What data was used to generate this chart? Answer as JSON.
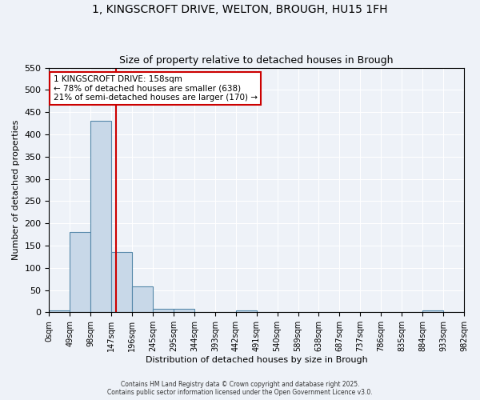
{
  "title_line1": "1, KINGSCROFT DRIVE, WELTON, BROUGH, HU15 1FH",
  "title_line2": "Size of property relative to detached houses in Brough",
  "xlabel": "Distribution of detached houses by size in Brough",
  "ylabel": "Number of detached properties",
  "bar_color": "#c8d8e8",
  "bar_edge_color": "#5588aa",
  "background_color": "#eef2f8",
  "grid_color": "#ffffff",
  "bin_edges": [
    0,
    49,
    98,
    147,
    196,
    245,
    294,
    343,
    392,
    441,
    490,
    539,
    588,
    637,
    686,
    735,
    784,
    833,
    882,
    931
  ],
  "bar_heights": [
    5,
    180,
    430,
    135,
    58,
    8,
    8,
    0,
    0,
    5,
    0,
    0,
    0,
    0,
    0,
    0,
    0,
    0,
    5,
    0
  ],
  "property_size": 158,
  "red_line_color": "#cc0000",
  "annotation_text": "1 KINGSCROFT DRIVE: 158sqm\n← 78% of detached houses are smaller (638)\n21% of semi-detached houses are larger (170) →",
  "annotation_box_color": "#ffffff",
  "annotation_box_edge_color": "#cc0000",
  "ylim": [
    0,
    550
  ],
  "yticks": [
    0,
    50,
    100,
    150,
    200,
    250,
    300,
    350,
    400,
    450,
    500,
    550
  ],
  "footer_line1": "Contains HM Land Registry data © Crown copyright and database right 2025.",
  "footer_line2": "Contains public sector information licensed under the Open Government Licence v3.0.",
  "tick_positions": [
    0,
    49,
    98,
    147,
    196,
    245,
    294,
    343,
    392,
    441,
    490,
    539,
    588,
    637,
    686,
    735,
    784,
    833,
    882,
    931,
    980
  ],
  "tick_labels": [
    "0sqm",
    "49sqm",
    "98sqm",
    "147sqm",
    "196sqm",
    "245sqm",
    "295sqm",
    "344sqm",
    "393sqm",
    "442sqm",
    "491sqm",
    "540sqm",
    "589sqm",
    "638sqm",
    "687sqm",
    "737sqm",
    "786sqm",
    "835sqm",
    "884sqm",
    "933sqm",
    "982sqm"
  ]
}
